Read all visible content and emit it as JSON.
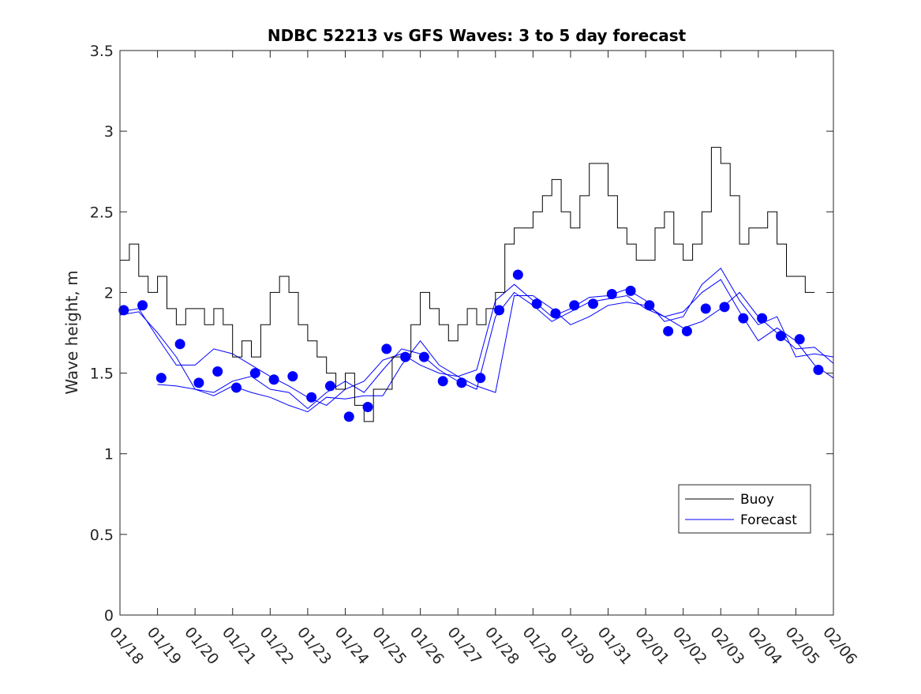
{
  "chart_data": {
    "type": "line",
    "title": "NDBC 52213 vs GFS Waves: 3 to 5 day forecast",
    "xlabel": "",
    "ylabel": "Wave height, m",
    "xlim_days": [
      0,
      19
    ],
    "ylim": [
      0,
      3.5
    ],
    "x_tick_labels": [
      "01/18",
      "01/19",
      "01/20",
      "01/21",
      "01/22",
      "01/23",
      "01/24",
      "01/25",
      "01/26",
      "01/27",
      "01/28",
      "01/29",
      "01/30",
      "01/31",
      "02/01",
      "02/02",
      "02/03",
      "02/04",
      "02/05",
      "02/06"
    ],
    "y_ticks": [
      0,
      0.5,
      1,
      1.5,
      2,
      2.5,
      3,
      3.5
    ],
    "y_tick_labels": [
      "0",
      "0.5",
      "1",
      "1.5",
      "2",
      "2.5",
      "3",
      "3.5"
    ],
    "grid": false,
    "legend": {
      "placement": "bottom-right",
      "entries": [
        "Buoy",
        "Forecast"
      ]
    },
    "colors": {
      "buoy": "#000000",
      "forecast": "#0000ff"
    },
    "x_unit": "days since 01/18",
    "buoy": {
      "start": 0,
      "step": 0.25,
      "values": [
        2.2,
        2.3,
        2.1,
        2.0,
        2.1,
        1.9,
        1.8,
        1.9,
        1.9,
        1.8,
        1.9,
        1.8,
        1.6,
        1.7,
        1.6,
        1.8,
        2.0,
        2.1,
        2.0,
        1.8,
        1.7,
        1.6,
        1.5,
        1.4,
        1.5,
        1.3,
        1.2,
        1.4,
        1.4,
        1.6,
        1.6,
        1.8,
        2.0,
        1.9,
        1.8,
        1.7,
        1.8,
        1.9,
        1.8,
        1.9,
        2.0,
        2.3,
        2.4,
        2.4,
        2.5,
        2.6,
        2.7,
        2.5,
        2.4,
        2.6,
        2.8,
        2.8,
        2.6,
        2.4,
        2.3,
        2.2,
        2.2,
        2.4,
        2.5,
        2.3,
        2.2,
        2.3,
        2.5,
        2.9,
        2.8,
        2.6,
        2.3,
        2.4,
        2.4,
        2.5,
        2.3,
        2.1,
        2.1,
        2.0
      ]
    },
    "forecast_lines": [
      {
        "start": 0,
        "step": 0.5,
        "values": [
          1.88,
          1.9,
          1.72,
          1.55,
          1.55,
          1.65,
          1.62,
          1.55,
          1.48,
          1.42,
          1.35,
          1.3,
          1.4,
          1.45,
          1.58,
          1.62,
          1.55,
          1.5,
          1.48,
          1.52,
          1.95,
          2.05,
          1.95,
          1.85,
          1.9,
          1.97,
          1.98,
          2.02,
          1.95,
          1.82,
          1.85,
          2.05,
          2.15,
          1.95,
          1.8,
          1.85,
          1.6,
          1.62,
          1.6
        ]
      },
      {
        "start": 0,
        "step": 0.5,
        "values": [
          1.86,
          1.88,
          1.75,
          1.6,
          1.4,
          1.38,
          1.45,
          1.48,
          1.4,
          1.38,
          1.28,
          1.38,
          1.45,
          1.38,
          1.52,
          1.65,
          1.62,
          1.52,
          1.45,
          1.4,
          1.85,
          2.0,
          1.92,
          1.82,
          1.88,
          1.94,
          1.96,
          1.98,
          1.9,
          1.85,
          1.88,
          2.0,
          2.08,
          1.88,
          1.7,
          1.78,
          1.7,
          1.55,
          1.47
        ]
      },
      {
        "start": 1.0,
        "step": 0.5,
        "values": [
          1.43,
          1.42,
          1.4,
          1.36,
          1.42,
          1.38,
          1.35,
          1.3,
          1.26,
          1.35,
          1.34,
          1.36,
          1.36,
          1.55,
          1.7,
          1.55,
          1.48,
          1.42,
          1.38,
          1.98,
          1.98,
          1.9,
          1.8,
          1.85,
          1.92,
          1.94,
          1.92,
          1.85,
          1.78,
          1.82,
          1.9,
          2.0,
          1.85,
          1.75,
          1.65,
          1.66,
          1.56
        ]
      }
    ],
    "forecast_points": {
      "start": 0.1,
      "step": 0.5,
      "values": [
        1.89,
        1.92,
        1.47,
        1.68,
        1.44,
        1.51,
        1.41,
        1.5,
        1.46,
        1.48,
        1.35,
        1.42,
        1.23,
        1.29,
        1.65,
        1.6,
        1.6,
        1.45,
        1.44,
        1.47,
        1.89,
        2.11,
        1.93,
        1.87,
        1.92,
        1.93,
        1.99,
        2.01,
        1.92,
        1.76,
        1.76,
        1.9,
        1.91,
        1.84,
        1.84,
        1.73,
        1.71,
        1.52
      ]
    }
  }
}
